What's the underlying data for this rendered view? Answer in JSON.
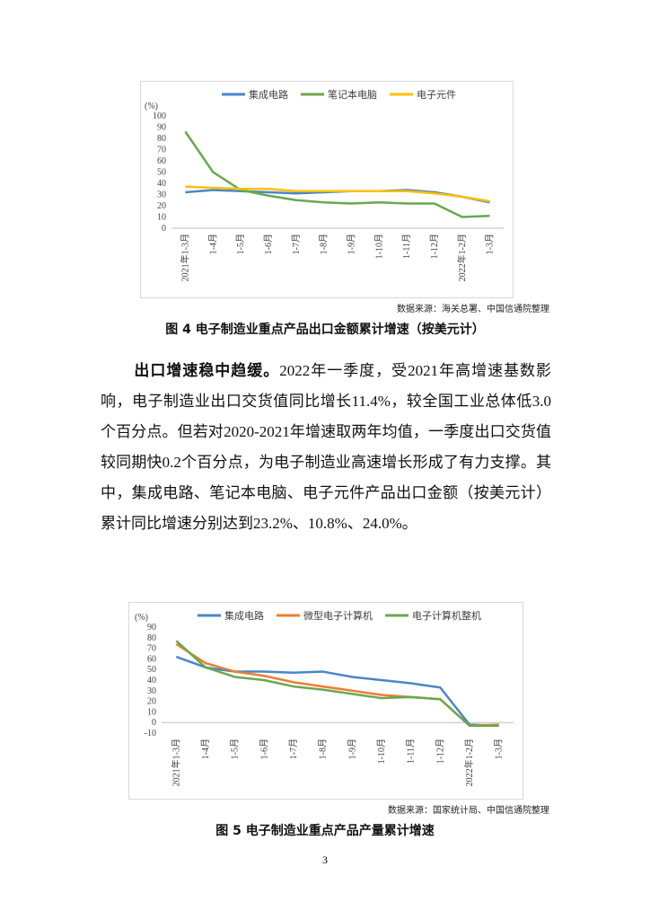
{
  "chart_data": [
    {
      "type": "line",
      "y_label": "(%)",
      "categories": [
        "2021年1-3月",
        "1-4月",
        "1-5月",
        "1-6月",
        "1-7月",
        "1-8月",
        "1-9月",
        "1-10月",
        "1-11月",
        "1-12月",
        "2022年1-2月",
        "1-3月"
      ],
      "series": [
        {
          "name": "集成电路",
          "color": "#4a86c8",
          "values": [
            32,
            34,
            33,
            32,
            31,
            32,
            33,
            33,
            34,
            32,
            28,
            23
          ]
        },
        {
          "name": "笔记本电脑",
          "color": "#6aa84f",
          "values": [
            86,
            50,
            34,
            29,
            25,
            23,
            22,
            23,
            22,
            22,
            10,
            11
          ]
        },
        {
          "name": "电子元件",
          "color": "#ffc000",
          "values": [
            37,
            36,
            35,
            35,
            33,
            33,
            33,
            33,
            33,
            31,
            28,
            24
          ]
        }
      ],
      "ylim": [
        0,
        100
      ],
      "yticks": [
        0,
        10,
        20,
        30,
        40,
        50,
        60,
        70,
        80,
        90,
        100
      ],
      "source": "数据来源：海关总署、中国信通院整理",
      "caption": "图 4  电子制造业重点产品出口金额累计增速（按美元计）"
    },
    {
      "type": "line",
      "y_label": "(%)",
      "categories": [
        "2021年1-3月",
        "1-4月",
        "1-5月",
        "1-6月",
        "1-7月",
        "1-8月",
        "1-9月",
        "1-10月",
        "1-11月",
        "1-12月",
        "2022年1-2月",
        "1-3月"
      ],
      "series": [
        {
          "name": "集成电路",
          "color": "#4a86c8",
          "values": [
            62,
            52,
            48,
            48,
            47,
            48,
            43,
            40,
            37,
            33,
            -2,
            -3
          ]
        },
        {
          "name": "微型电子计算机",
          "color": "#ed7d31",
          "values": [
            74,
            56,
            48,
            44,
            38,
            34,
            30,
            26,
            24,
            22,
            -3,
            -2
          ]
        },
        {
          "name": "电子计算机整机",
          "color": "#6aa84f",
          "values": [
            77,
            52,
            43,
            40,
            34,
            31,
            27,
            23,
            24,
            22,
            -3,
            -3
          ]
        }
      ],
      "ylim": [
        -10,
        90
      ],
      "yticks": [
        -10,
        0,
        10,
        20,
        30,
        40,
        50,
        60,
        70,
        80,
        90
      ],
      "source": "数据来源：国家统计局、中国信通院整理",
      "caption": "图 5  电子制造业重点产品产量累计增速"
    }
  ],
  "paragraph": {
    "lead": "出口增速稳中趋缓。",
    "text": "2022年一季度，受2021年高增速基数影响，电子制造业出口交货值同比增长11.4%，较全国工业总体低3.0个百分点。但若对2020-2021年增速取两年均值，一季度出口交货值较同期快0.2个百分点，为电子制造业高速增长形成了有力支撑。其中，集成电路、笔记本电脑、电子元件产品出口金额（按美元计）累计同比增速分别达到23.2%、10.8%、24.0%。"
  },
  "page_number": "3"
}
